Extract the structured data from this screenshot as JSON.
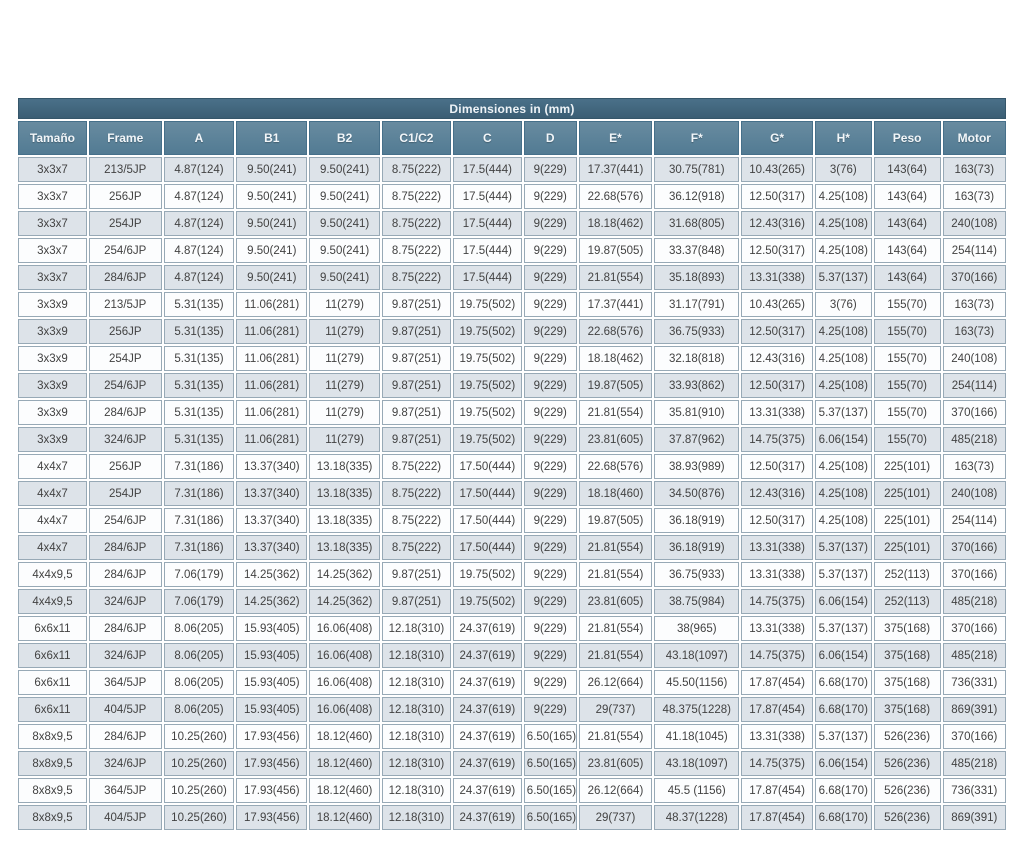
{
  "table": {
    "title": "Dimensiones in (mm)",
    "columns": [
      "Tamaño",
      "Frame",
      "A",
      "B1",
      "B2",
      "C1/C2",
      "C",
      "D",
      "E*",
      "F*",
      "G*",
      "H*",
      "Peso",
      "Motor"
    ],
    "rows": [
      [
        "3x3x7",
        "213/5JP",
        "4.87(124)",
        "9.50(241)",
        "9.50(241)",
        "8.75(222)",
        "17.5(444)",
        "9(229)",
        "17.37(441)",
        "30.75(781)",
        "10.43(265)",
        "3(76)",
        "143(64)",
        "163(73)"
      ],
      [
        "3x3x7",
        "256JP",
        "4.87(124)",
        "9.50(241)",
        "9.50(241)",
        "8.75(222)",
        "17.5(444)",
        "9(229)",
        "22.68(576)",
        "36.12(918)",
        "12.50(317)",
        "4.25(108)",
        "143(64)",
        "163(73)"
      ],
      [
        "3x3x7",
        "254JP",
        "4.87(124)",
        "9.50(241)",
        "9.50(241)",
        "8.75(222)",
        "17.5(444)",
        "9(229)",
        "18.18(462)",
        "31.68(805)",
        "12.43(316)",
        "4.25(108)",
        "143(64)",
        "240(108)"
      ],
      [
        "3x3x7",
        "254/6JP",
        "4.87(124)",
        "9.50(241)",
        "9.50(241)",
        "8.75(222)",
        "17.5(444)",
        "9(229)",
        "19.87(505)",
        "33.37(848)",
        "12.50(317)",
        "4.25(108)",
        "143(64)",
        "254(114)"
      ],
      [
        "3x3x7",
        "284/6JP",
        "4.87(124)",
        "9.50(241)",
        "9.50(241)",
        "8.75(222)",
        "17.5(444)",
        "9(229)",
        "21.81(554)",
        "35.18(893)",
        "13.31(338)",
        "5.37(137)",
        "143(64)",
        "370(166)"
      ],
      [
        "3x3x9",
        "213/5JP",
        "5.31(135)",
        "11.06(281)",
        "11(279)",
        "9.87(251)",
        "19.75(502)",
        "9(229)",
        "17.37(441)",
        "31.17(791)",
        "10.43(265)",
        "3(76)",
        "155(70)",
        "163(73)"
      ],
      [
        "3x3x9",
        "256JP",
        "5.31(135)",
        "11.06(281)",
        "11(279)",
        "9.87(251)",
        "19.75(502)",
        "9(229)",
        "22.68(576)",
        "36.75(933)",
        "12.50(317)",
        "4.25(108)",
        "155(70)",
        "163(73)"
      ],
      [
        "3x3x9",
        "254JP",
        "5.31(135)",
        "11.06(281)",
        "11(279)",
        "9.87(251)",
        "19.75(502)",
        "9(229)",
        "18.18(462)",
        "32.18(818)",
        "12.43(316)",
        "4.25(108)",
        "155(70)",
        "240(108)"
      ],
      [
        "3x3x9",
        "254/6JP",
        "5.31(135)",
        "11.06(281)",
        "11(279)",
        "9.87(251)",
        "19.75(502)",
        "9(229)",
        "19.87(505)",
        "33.93(862)",
        "12.50(317)",
        "4.25(108)",
        "155(70)",
        "254(114)"
      ],
      [
        "3x3x9",
        "284/6JP",
        "5.31(135)",
        "11.06(281)",
        "11(279)",
        "9.87(251)",
        "19.75(502)",
        "9(229)",
        "21.81(554)",
        "35.81(910)",
        "13.31(338)",
        "5.37(137)",
        "155(70)",
        "370(166)"
      ],
      [
        "3x3x9",
        "324/6JP",
        "5.31(135)",
        "11.06(281)",
        "11(279)",
        "9.87(251)",
        "19.75(502)",
        "9(229)",
        "23.81(605)",
        "37.87(962)",
        "14.75(375)",
        "6.06(154)",
        "155(70)",
        "485(218)"
      ],
      [
        "4x4x7",
        "256JP",
        "7.31(186)",
        "13.37(340)",
        "13.18(335)",
        "8.75(222)",
        "17.50(444)",
        "9(229)",
        "22.68(576)",
        "38.93(989)",
        "12.50(317)",
        "4.25(108)",
        "225(101)",
        "163(73)"
      ],
      [
        "4x4x7",
        "254JP",
        "7.31(186)",
        "13.37(340)",
        "13.18(335)",
        "8.75(222)",
        "17.50(444)",
        "9(229)",
        "18.18(460)",
        "34.50(876)",
        "12.43(316)",
        "4.25(108)",
        "225(101)",
        "240(108)"
      ],
      [
        "4x4x7",
        "254/6JP",
        "7.31(186)",
        "13.37(340)",
        "13.18(335)",
        "8.75(222)",
        "17.50(444)",
        "9(229)",
        "19.87(505)",
        "36.18(919)",
        "12.50(317)",
        "4.25(108)",
        "225(101)",
        "254(114)"
      ],
      [
        "4x4x7",
        "284/6JP",
        "7.31(186)",
        "13.37(340)",
        "13.18(335)",
        "8.75(222)",
        "17.50(444)",
        "9(229)",
        "21.81(554)",
        "36.18(919)",
        "13.31(338)",
        "5.37(137)",
        "225(101)",
        "370(166)"
      ],
      [
        "4x4x9,5",
        "284/6JP",
        "7.06(179)",
        "14.25(362)",
        "14.25(362)",
        "9.87(251)",
        "19.75(502)",
        "9(229)",
        "21.81(554)",
        "36.75(933)",
        "13.31(338)",
        "5.37(137)",
        "252(113)",
        "370(166)"
      ],
      [
        "4x4x9,5",
        "324/6JP",
        "7.06(179)",
        "14.25(362)",
        "14.25(362)",
        "9.87(251)",
        "19.75(502)",
        "9(229)",
        "23.81(605)",
        "38.75(984)",
        "14.75(375)",
        "6.06(154)",
        "252(113)",
        "485(218)"
      ],
      [
        "6x6x11",
        "284/6JP",
        "8.06(205)",
        "15.93(405)",
        "16.06(408)",
        "12.18(310)",
        "24.37(619)",
        "9(229)",
        "21.81(554)",
        "38(965)",
        "13.31(338)",
        "5.37(137)",
        "375(168)",
        "370(166)"
      ],
      [
        "6x6x11",
        "324/6JP",
        "8.06(205)",
        "15.93(405)",
        "16.06(408)",
        "12.18(310)",
        "24.37(619)",
        "9(229)",
        "21.81(554)",
        "43.18(1097)",
        "14.75(375)",
        "6.06(154)",
        "375(168)",
        "485(218)"
      ],
      [
        "6x6x11",
        "364/5JP",
        "8.06(205)",
        "15.93(405)",
        "16.06(408)",
        "12.18(310)",
        "24.37(619)",
        "9(229)",
        "26.12(664)",
        "45.50(1156)",
        "17.87(454)",
        "6.68(170)",
        "375(168)",
        "736(331)"
      ],
      [
        "6x6x11",
        "404/5JP",
        "8.06(205)",
        "15.93(405)",
        "16.06(408)",
        "12.18(310)",
        "24.37(619)",
        "9(229)",
        "29(737)",
        "48.375(1228)",
        "17.87(454)",
        "6.68(170)",
        "375(168)",
        "869(391)"
      ],
      [
        "8x8x9,5",
        "284/6JP",
        "10.25(260)",
        "17.93(456)",
        "18.12(460)",
        "12.18(310)",
        "24.37(619)",
        "6.50(165)",
        "21.81(554)",
        "41.18(1045)",
        "13.31(338)",
        "5.37(137)",
        "526(236)",
        "370(166)"
      ],
      [
        "8x8x9,5",
        "324/6JP",
        "10.25(260)",
        "17.93(456)",
        "18.12(460)",
        "12.18(310)",
        "24.37(619)",
        "6.50(165)",
        "23.81(605)",
        "43.18(1097)",
        "14.75(375)",
        "6.06(154)",
        "526(236)",
        "485(218)"
      ],
      [
        "8x8x9,5",
        "364/5JP",
        "10.25(260)",
        "17.93(456)",
        "18.12(460)",
        "12.18(310)",
        "24.37(619)",
        "6.50(165)",
        "26.12(664)",
        "45.5 (1156)",
        "17.87(454)",
        "6.68(170)",
        "526(236)",
        "736(331)"
      ],
      [
        "8x8x9,5",
        "404/5JP",
        "10.25(260)",
        "17.93(456)",
        "18.12(460)",
        "12.18(310)",
        "24.37(619)",
        "6.50(165)",
        "29(737)",
        "48.37(1228)",
        "17.87(454)",
        "6.68(170)",
        "526(236)",
        "869(391)"
      ]
    ]
  },
  "colors": {
    "title_bar": "#3f6379",
    "header_bg": "#577e94",
    "row_alt": "#dde3e9",
    "row_base": "#fcfdfe",
    "cell_border": "#97a9b6",
    "header_text": "#f2f6f9",
    "cell_text": "#424242"
  },
  "column_widths_pct": [
    7.3,
    7.7,
    7.5,
    7.5,
    7.5,
    7.3,
    7.3,
    5.6,
    7.8,
    9.0,
    7.6,
    6.0,
    7.1,
    6.7
  ]
}
